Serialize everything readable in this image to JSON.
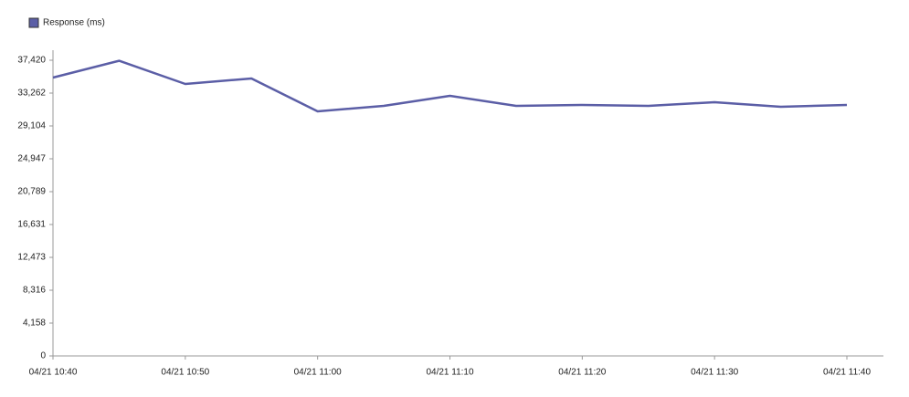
{
  "chart_data": {
    "type": "line",
    "categories": [
      "04/21 10:40",
      null,
      "04/21 10:50",
      null,
      "04/21 11:00",
      null,
      "04/21 11:10",
      null,
      "04/21 11:20",
      null,
      "04/21 11:30",
      null,
      "04/21 11:40"
    ],
    "series": [
      {
        "name": "Response (ms)",
        "color": "#5b5ea6",
        "values": [
          35226,
          37350,
          34417,
          35110,
          30953,
          31646,
          32916,
          31646,
          31761,
          31646,
          32107,
          31530,
          31761
        ]
      }
    ],
    "ylim": [
      0,
      37420
    ],
    "yticks": [
      0,
      {
        "value": 4158,
        "label": "4,158"
      },
      {
        "value": 8316,
        "label": "8,316"
      },
      {
        "value": 12473,
        "label": "12,473"
      },
      {
        "value": 16631,
        "label": "16,631"
      },
      {
        "value": 20789,
        "label": "20,789"
      },
      {
        "value": 24947,
        "label": "24,947"
      },
      {
        "value": 29104,
        "label": "29,104"
      },
      {
        "value": 33262,
        "label": "33,262"
      },
      {
        "value": 37420,
        "label": "37,420"
      }
    ],
    "legend": "top-left"
  }
}
